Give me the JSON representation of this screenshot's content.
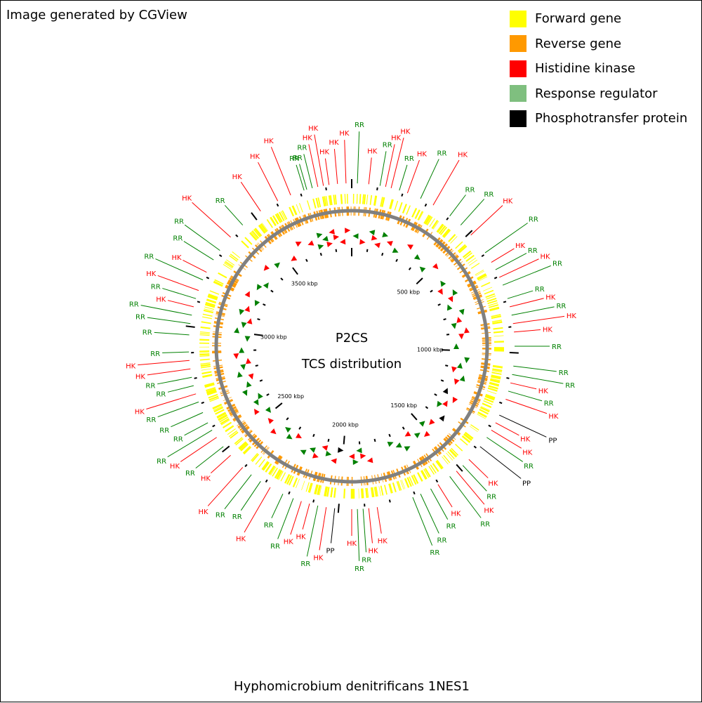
{
  "header": {
    "generated_by": "Image generated by CGView"
  },
  "legend": [
    {
      "label": "Forward gene",
      "color": "#ffff00"
    },
    {
      "label": "Reverse gene",
      "color": "#ff9900"
    },
    {
      "label": "Histidine kinase",
      "color": "#ff0000"
    },
    {
      "label": "Response regulator",
      "color": "#7fbf7f"
    },
    {
      "label": "Phosphotransfer protein",
      "color": "#000000"
    }
  ],
  "center": {
    "title": "P2CS",
    "subtitle": "TCS distribution"
  },
  "footer": {
    "organism": "Hyphomicrobium denitrificans 1NES1"
  },
  "colors": {
    "forward": "#ffff00",
    "reverse": "#ff9900",
    "backbone": "#808080",
    "hk": "#ff0000",
    "rr": "#008000",
    "pp": "#000000"
  },
  "genome": {
    "length_kbp": 3900,
    "tick_labels": [
      "500 kbp",
      "1000 kbp",
      "1500 kbp",
      "2000 kbp",
      "2500 kbp",
      "3000 kbp",
      "3500 kbp"
    ],
    "tick_values_kbp": [
      500,
      1000,
      1500,
      2000,
      2500,
      3000,
      3500
    ]
  },
  "features": [
    {
      "label": "RR",
      "type": "rr",
      "angle": -16
    },
    {
      "label": "RR",
      "type": "rr",
      "angle": -14
    },
    {
      "label": "HK",
      "type": "hk",
      "angle": -12
    },
    {
      "label": "HK",
      "type": "hk",
      "angle": -10
    },
    {
      "label": "HK",
      "type": "hk",
      "angle": -8
    },
    {
      "label": "HK",
      "type": "hk",
      "angle": -5
    },
    {
      "label": "HK",
      "type": "hk",
      "angle": -2
    },
    {
      "label": "RR",
      "type": "rr",
      "angle": 2
    },
    {
      "label": "HK",
      "type": "hk",
      "angle": 6
    },
    {
      "label": "RR",
      "type": "rr",
      "angle": 10
    },
    {
      "label": "HK",
      "type": "hk",
      "angle": 12
    },
    {
      "label": "HK",
      "type": "hk",
      "angle": 14
    },
    {
      "label": "RR",
      "type": "rr",
      "angle": 17
    },
    {
      "label": "HK",
      "type": "hk",
      "angle": 20
    },
    {
      "label": "RR",
      "type": "rr",
      "angle": 25
    },
    {
      "label": "HK",
      "type": "hk",
      "angle": 30
    },
    {
      "label": "RR",
      "type": "rr",
      "angle": 37
    },
    {
      "label": "RR",
      "type": "rr",
      "angle": 42
    },
    {
      "label": "HK",
      "type": "hk",
      "angle": 47
    },
    {
      "label": "RR",
      "type": "rr",
      "angle": 55
    },
    {
      "label": "HK",
      "type": "hk",
      "angle": 59
    },
    {
      "label": "RR",
      "type": "rr",
      "angle": 62
    },
    {
      "label": "HK",
      "type": "hk",
      "angle": 65
    },
    {
      "label": "RR",
      "type": "rr",
      "angle": 68
    },
    {
      "label": "RR",
      "type": "rr",
      "angle": 73
    },
    {
      "label": "HK",
      "type": "hk",
      "angle": 76
    },
    {
      "label": "RR",
      "type": "rr",
      "angle": 79
    },
    {
      "label": "HK",
      "type": "hk",
      "angle": 82
    },
    {
      "label": "HK",
      "type": "hk",
      "angle": 85
    },
    {
      "label": "RR",
      "type": "rr",
      "angle": 90
    },
    {
      "label": "RR",
      "type": "rr",
      "angle": 97
    },
    {
      "label": "RR",
      "type": "rr",
      "angle": 100
    },
    {
      "label": "HK",
      "type": "hk",
      "angle": 103
    },
    {
      "label": "RR",
      "type": "rr",
      "angle": 106
    },
    {
      "label": "HK",
      "type": "hk",
      "angle": 109
    },
    {
      "label": "PP",
      "type": "pp",
      "angle": 115
    },
    {
      "label": "HK",
      "type": "hk",
      "angle": 118
    },
    {
      "label": "HK",
      "type": "hk",
      "angle": 121
    },
    {
      "label": "RR",
      "type": "rr",
      "angle": 124
    },
    {
      "label": "PP",
      "type": "pp",
      "angle": 128
    },
    {
      "label": "HK",
      "type": "hk",
      "angle": 134
    },
    {
      "label": "RR",
      "type": "rr",
      "angle": 137
    },
    {
      "label": "HK",
      "type": "hk",
      "angle": 140
    },
    {
      "label": "RR",
      "type": "rr",
      "angle": 143
    },
    {
      "label": "HK",
      "type": "hk",
      "angle": 148
    },
    {
      "label": "RR",
      "type": "rr",
      "angle": 151
    },
    {
      "label": "RR",
      "type": "rr",
      "angle": 155
    },
    {
      "label": "RR",
      "type": "rr",
      "angle": 158
    },
    {
      "label": "HK",
      "type": "hk",
      "angle": 171
    },
    {
      "label": "HK",
      "type": "hk",
      "angle": 174
    },
    {
      "label": "RR",
      "type": "rr",
      "angle": 176
    },
    {
      "label": "RR",
      "type": "rr",
      "angle": 178
    },
    {
      "label": "HK",
      "type": "hk",
      "angle": 180
    },
    {
      "label": "PP",
      "type": "pp",
      "angle": 186
    },
    {
      "label": "HK",
      "type": "hk",
      "angle": 189
    },
    {
      "label": "RR",
      "type": "rr",
      "angle": 192
    },
    {
      "label": "HK",
      "type": "hk",
      "angle": 195
    },
    {
      "label": "HK",
      "type": "hk",
      "angle": 198
    },
    {
      "label": "RR",
      "type": "rr",
      "angle": 201
    },
    {
      "label": "HK",
      "type": "hk",
      "angle": 210
    },
    {
      "label": "RR",
      "type": "rr",
      "angle": 205
    },
    {
      "label": "RR",
      "type": "rr",
      "angle": 214
    },
    {
      "label": "RR",
      "type": "rr",
      "angle": 218
    },
    {
      "label": "HK",
      "type": "hk",
      "angle": 222
    },
    {
      "label": "HK",
      "type": "hk",
      "angle": 228
    },
    {
      "label": "RR",
      "type": "rr",
      "angle": 232
    },
    {
      "label": "HK",
      "type": "hk",
      "angle": 236
    },
    {
      "label": "RR",
      "type": "rr",
      "angle": 239
    },
    {
      "label": "RR",
      "type": "rr",
      "angle": 242
    },
    {
      "label": "RR",
      "type": "rr",
      "angle": 246
    },
    {
      "label": "RR",
      "type": "rr",
      "angle": 250
    },
    {
      "label": "HK",
      "type": "hk",
      "angle": 253
    },
    {
      "label": "RR",
      "type": "rr",
      "angle": 256
    },
    {
      "label": "RR",
      "type": "rr",
      "angle": 259
    },
    {
      "label": "HK",
      "type": "hk",
      "angle": 262
    },
    {
      "label": "HK",
      "type": "hk",
      "angle": 265
    },
    {
      "label": "RR",
      "type": "rr",
      "angle": 268
    },
    {
      "label": "RR",
      "type": "rr",
      "angle": 274
    },
    {
      "label": "RR",
      "type": "rr",
      "angle": 278
    },
    {
      "label": "RR",
      "type": "rr",
      "angle": 281
    },
    {
      "label": "HK",
      "type": "hk",
      "angle": 284
    },
    {
      "label": "RR",
      "type": "rr",
      "angle": 287
    },
    {
      "label": "HK",
      "type": "hk",
      "angle": 290
    },
    {
      "label": "RR",
      "type": "rr",
      "angle": 294
    },
    {
      "label": "HK",
      "type": "hk",
      "angle": 297
    },
    {
      "label": "RR",
      "type": "rr",
      "angle": 302
    },
    {
      "label": "RR",
      "type": "rr",
      "angle": 306
    },
    {
      "label": "HK",
      "type": "hk",
      "angle": 312
    },
    {
      "label": "RR",
      "type": "rr",
      "angle": 318
    },
    {
      "label": "HK",
      "type": "hk",
      "angle": 326
    },
    {
      "label": "HK",
      "type": "hk",
      "angle": 333
    },
    {
      "label": "HK",
      "type": "hk",
      "angle": 338
    },
    {
      "label": "RR",
      "type": "rr",
      "angle": 343
    }
  ]
}
